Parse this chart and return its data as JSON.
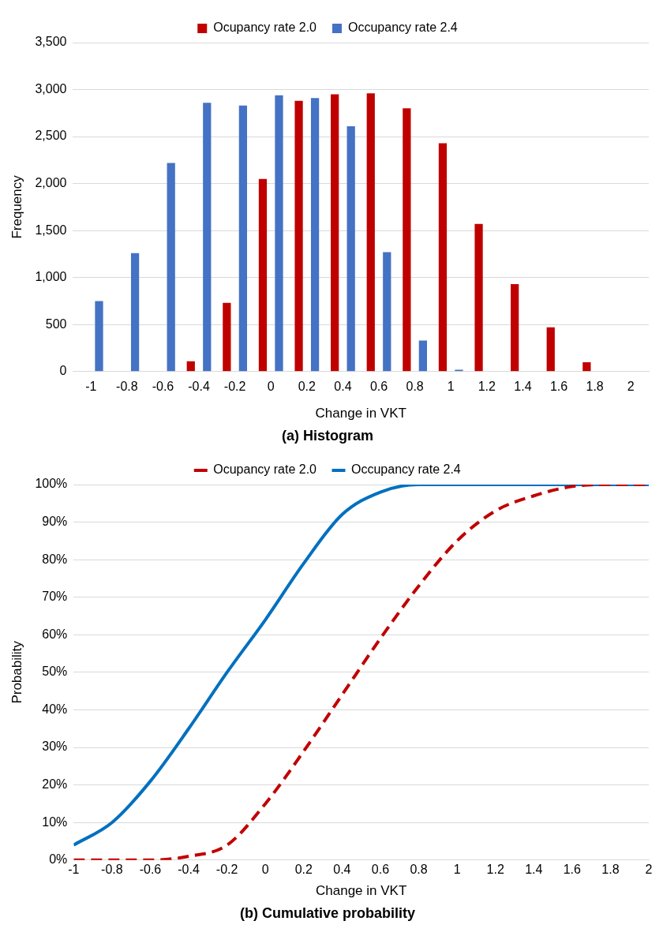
{
  "chart_data": [
    {
      "type": "bar",
      "title": "(a) Histogram",
      "xlabel": "Change in VKT",
      "ylabel": "Frequency",
      "categories": [
        "-1",
        "-0.8",
        "-0.6",
        "-0.4",
        "-0.2",
        "0",
        "0.2",
        "0.4",
        "0.6",
        "0.8",
        "1",
        "1.2",
        "1.4",
        "1.6",
        "1.8",
        "2"
      ],
      "series": [
        {
          "name": "Ocupancy rate 2.0",
          "color": "#c00000",
          "values": [
            0,
            0,
            0,
            110,
            730,
            2050,
            2880,
            2950,
            2960,
            2800,
            2430,
            1570,
            930,
            470,
            100,
            0
          ]
        },
        {
          "name": "Occupancy rate 2.4",
          "color": "#4472c4",
          "values": [
            750,
            1260,
            2220,
            2860,
            2830,
            2940,
            2910,
            2610,
            1270,
            330,
            20,
            0,
            0,
            0,
            0,
            0
          ]
        }
      ],
      "ylim": [
        0,
        3500
      ],
      "yticks": [
        {
          "value": 0,
          "label": "0"
        },
        {
          "value": 500,
          "label": "500"
        },
        {
          "value": 1000,
          "label": "1,000"
        },
        {
          "value": 1500,
          "label": "1,500"
        },
        {
          "value": 2000,
          "label": "2,000"
        },
        {
          "value": 2500,
          "label": "2,500"
        },
        {
          "value": 3000,
          "label": "3,000"
        },
        {
          "value": 3500,
          "label": "3,500"
        }
      ],
      "grid": "y",
      "legend": "top"
    },
    {
      "type": "line",
      "title": "(b) Cumulative probability",
      "xlabel": "Change in VKT",
      "ylabel": "Probability",
      "x": [
        -1,
        -0.8,
        -0.6,
        -0.4,
        -0.2,
        0,
        0.2,
        0.4,
        0.6,
        0.8,
        1,
        1.2,
        1.4,
        1.6,
        1.8,
        2
      ],
      "series": [
        {
          "name": "Ocupancy rate 2.0",
          "color": "#c00000",
          "line_style": "dashed",
          "values": [
            0,
            0,
            0,
            1,
            4,
            15,
            29,
            44,
            59,
            73,
            85,
            93,
            97,
            99.5,
            100,
            100
          ]
        },
        {
          "name": "Occupancy rate 2.4",
          "color": "#0070c0",
          "line_style": "solid",
          "values": [
            4,
            10,
            21,
            35,
            50,
            64,
            79,
            92,
            98,
            100,
            100,
            100,
            100,
            100,
            100,
            100
          ]
        }
      ],
      "xlim": [
        -1,
        2
      ],
      "xticks": [
        -1,
        -0.8,
        -0.6,
        -0.4,
        -0.2,
        0,
        0.2,
        0.4,
        0.6,
        0.8,
        1,
        1.2,
        1.4,
        1.6,
        1.8,
        2
      ],
      "ylim": [
        0,
        100
      ],
      "yticks": [
        {
          "value": 0,
          "label": "0%"
        },
        {
          "value": 10,
          "label": "10%"
        },
        {
          "value": 20,
          "label": "20%"
        },
        {
          "value": 30,
          "label": "30%"
        },
        {
          "value": 40,
          "label": "40%"
        },
        {
          "value": 50,
          "label": "50%"
        },
        {
          "value": 60,
          "label": "60%"
        },
        {
          "value": 70,
          "label": "70%"
        },
        {
          "value": 80,
          "label": "80%"
        },
        {
          "value": 90,
          "label": "90%"
        },
        {
          "value": 100,
          "label": "100%"
        }
      ],
      "grid": "y",
      "legend": "top",
      "marker": "none"
    }
  ]
}
